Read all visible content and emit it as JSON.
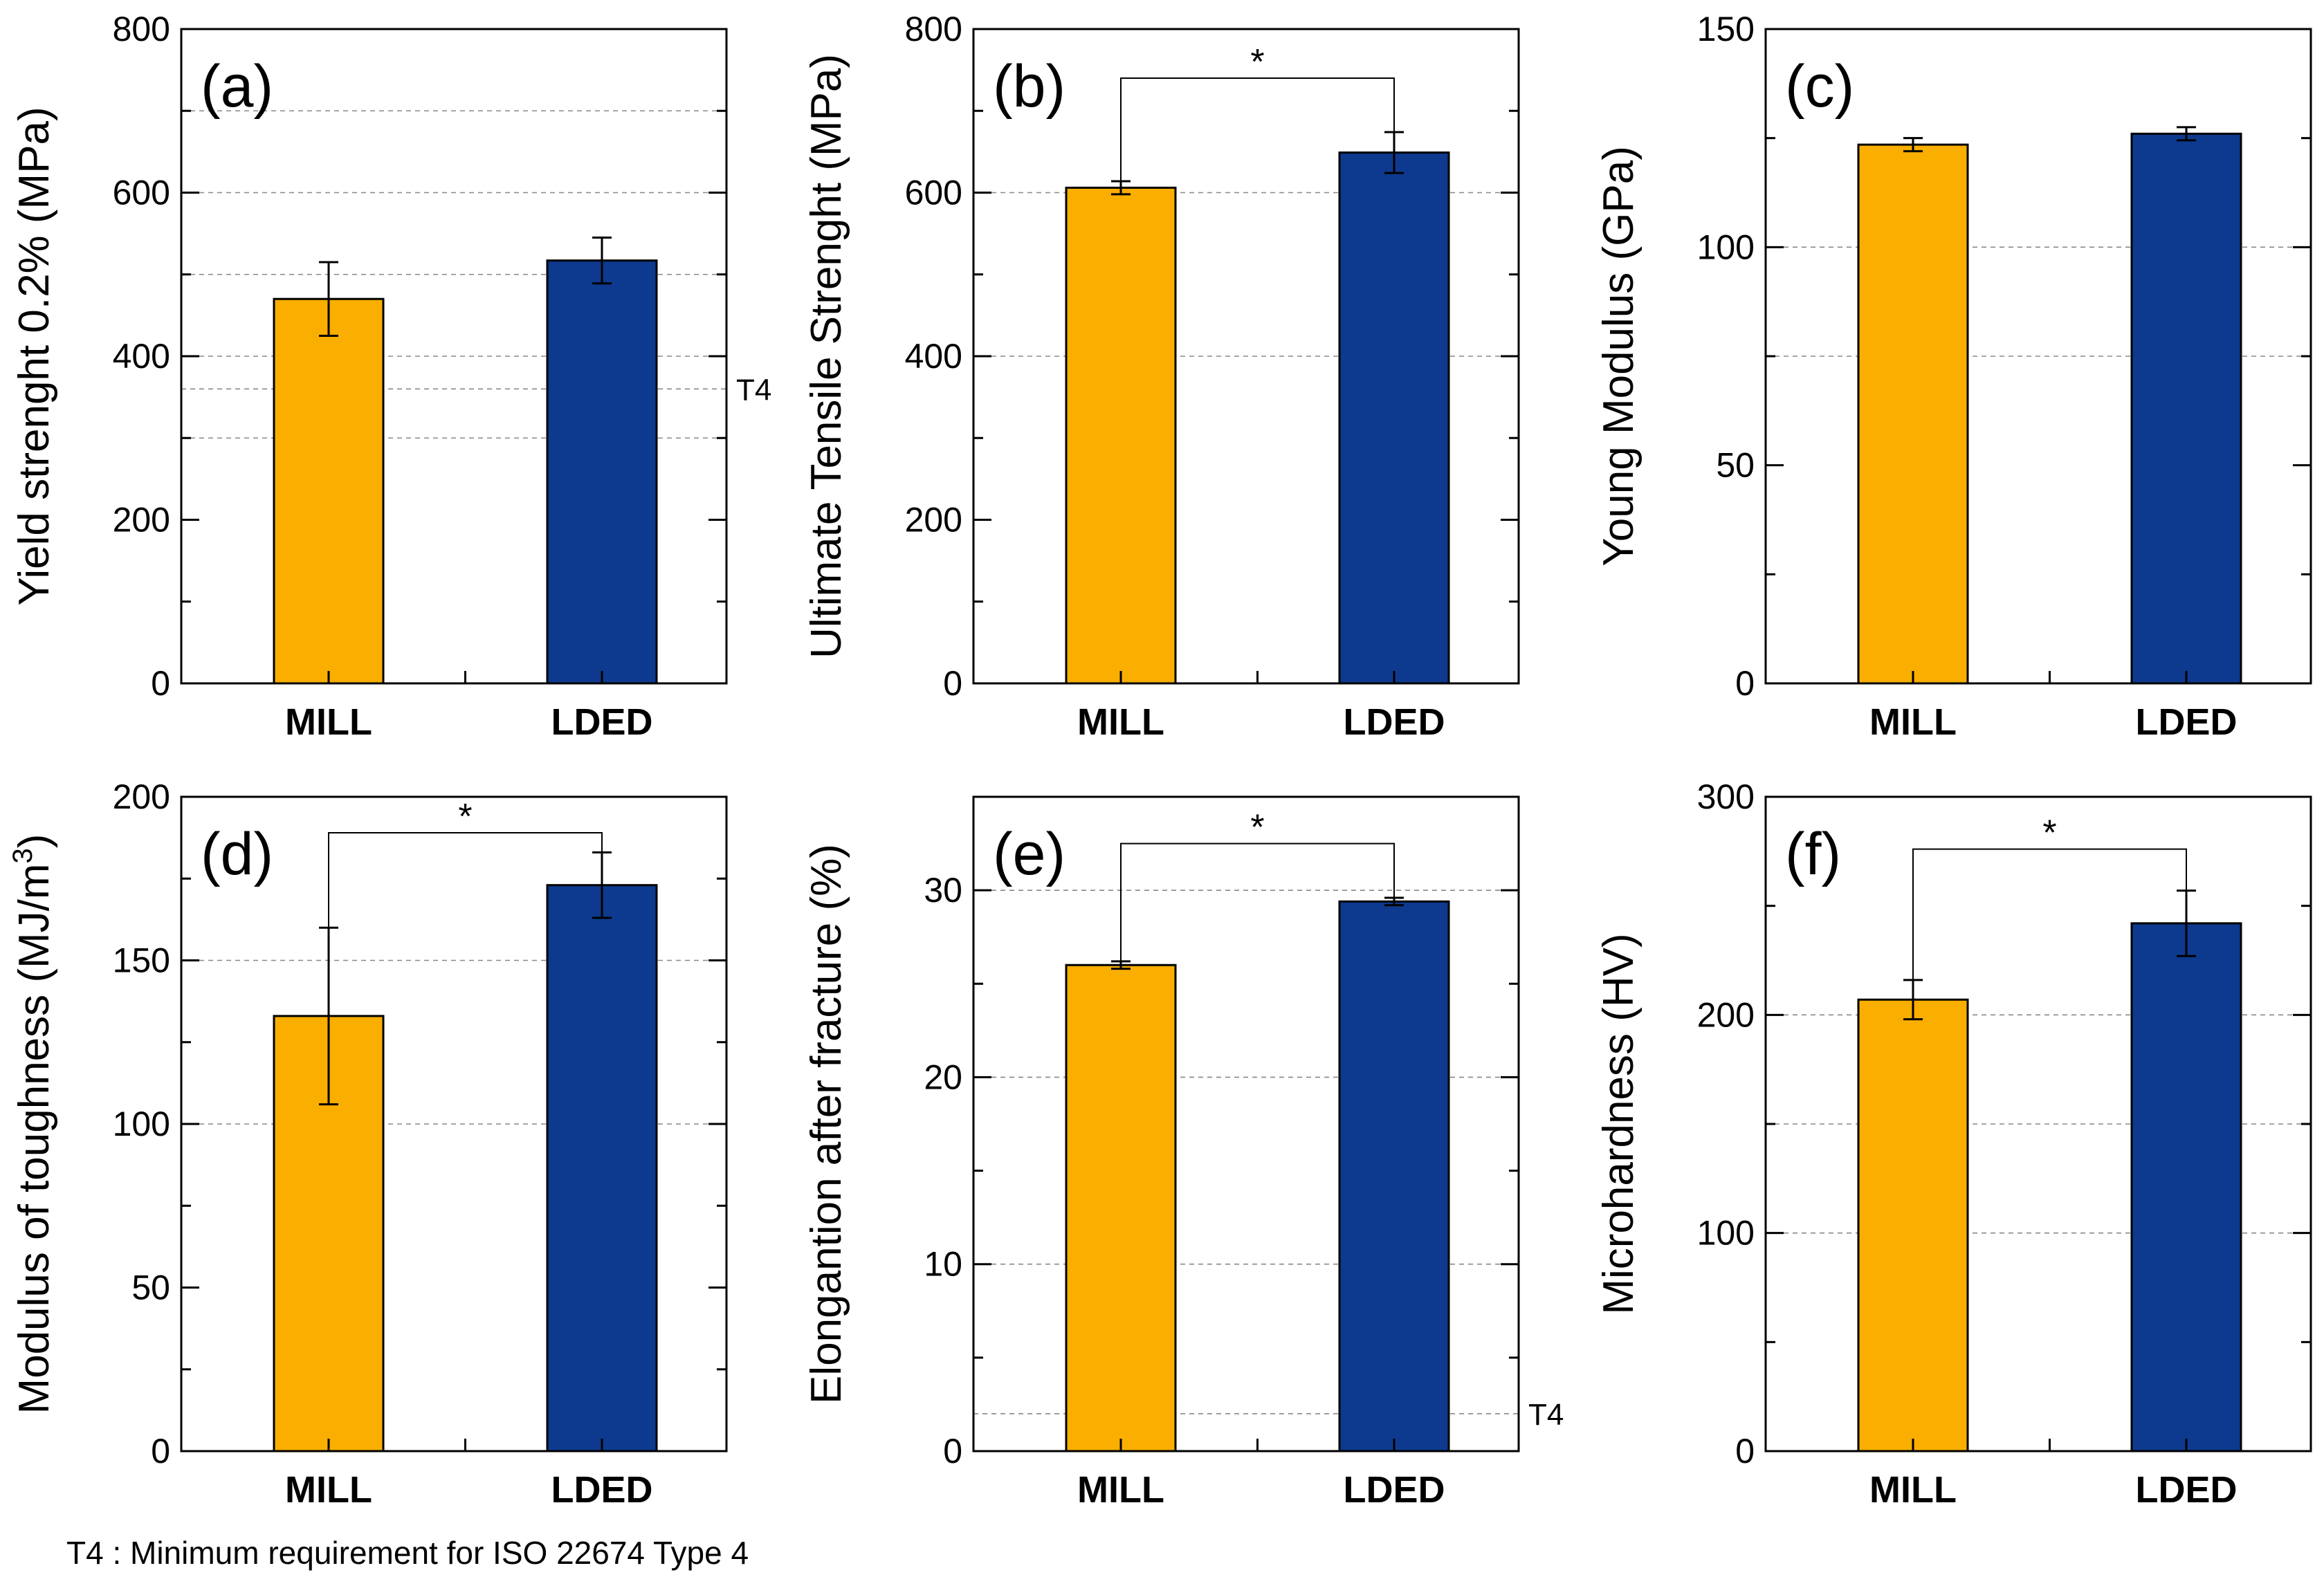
{
  "footnote": "T4 : Minimum requirement for ISO 22674 Type 4",
  "colors": {
    "MILL": "#F9AE00",
    "LDED": "#0D3A8E",
    "axis": "#000000",
    "grid": "#888888"
  },
  "chart_data": [
    {
      "type": "bar",
      "panel": "(a)",
      "ylabel": "Yield strenght 0.2% (MPa)",
      "categories": [
        "MILL",
        "LDED"
      ],
      "values": [
        470,
        517
      ],
      "errors": [
        45,
        28
      ],
      "ylim": [
        0,
        800
      ],
      "yticks": [
        0,
        200,
        400,
        600,
        800
      ],
      "gridlines": [
        300,
        400,
        500,
        600,
        700
      ],
      "reference": {
        "label": "T4",
        "value": 360
      },
      "significance": null
    },
    {
      "type": "bar",
      "panel": "(b)",
      "ylabel": "Ultimate Tensile Strenght (MPa)",
      "categories": [
        "MILL",
        "LDED"
      ],
      "values": [
        606,
        649
      ],
      "errors": [
        8,
        25
      ],
      "ylim": [
        0,
        800
      ],
      "yticks": [
        0,
        200,
        400,
        600,
        800
      ],
      "gridlines": [
        400,
        600
      ],
      "reference": null,
      "significance": {
        "label": "*",
        "level": 740
      }
    },
    {
      "type": "bar",
      "panel": "(c)",
      "ylabel": "Young Modulus (GPa)",
      "categories": [
        "MILL",
        "LDED"
      ],
      "values": [
        123.5,
        126
      ],
      "errors": [
        1.5,
        1.5
      ],
      "ylim": [
        0,
        150
      ],
      "yticks": [
        0,
        50,
        100,
        150
      ],
      "gridlines": [
        75,
        100
      ],
      "reference": null,
      "significance": null
    },
    {
      "type": "bar",
      "panel": "(d)",
      "ylabel": "Modulus of toughness (MJ/m3)",
      "ylabel_main": "Modulus of toughness (MJ/m",
      "ylabel_sup": "3",
      "ylabel_end": ")",
      "categories": [
        "MILL",
        "LDED"
      ],
      "values": [
        133,
        173
      ],
      "errors": [
        27,
        10
      ],
      "ylim": [
        0,
        200
      ],
      "yticks": [
        0,
        50,
        100,
        150,
        200
      ],
      "gridlines": [
        100,
        150
      ],
      "reference": null,
      "significance": {
        "label": "*",
        "level": 189
      }
    },
    {
      "type": "bar",
      "panel": "(e)",
      "ylabel": "Elongantion after fracture (%)",
      "categories": [
        "MILL",
        "LDED"
      ],
      "values": [
        26,
        29.4
      ],
      "errors": [
        0.2,
        0.2
      ],
      "ylim": [
        0,
        35
      ],
      "yticks": [
        0,
        10,
        20,
        30
      ],
      "gridlines": [
        10,
        20,
        30
      ],
      "reference": {
        "label": "T4",
        "value": 2
      },
      "significance": {
        "label": "*",
        "level": 32.5
      }
    },
    {
      "type": "bar",
      "panel": "(f)",
      "ylabel": "Microhardness (HV)",
      "categories": [
        "MILL",
        "LDED"
      ],
      "values": [
        207,
        242
      ],
      "errors": [
        9,
        15
      ],
      "ylim": [
        0,
        300
      ],
      "yticks": [
        0,
        100,
        200,
        300
      ],
      "gridlines": [
        100,
        150,
        200
      ],
      "reference": null,
      "significance": {
        "label": "*",
        "level": 276
      }
    }
  ]
}
